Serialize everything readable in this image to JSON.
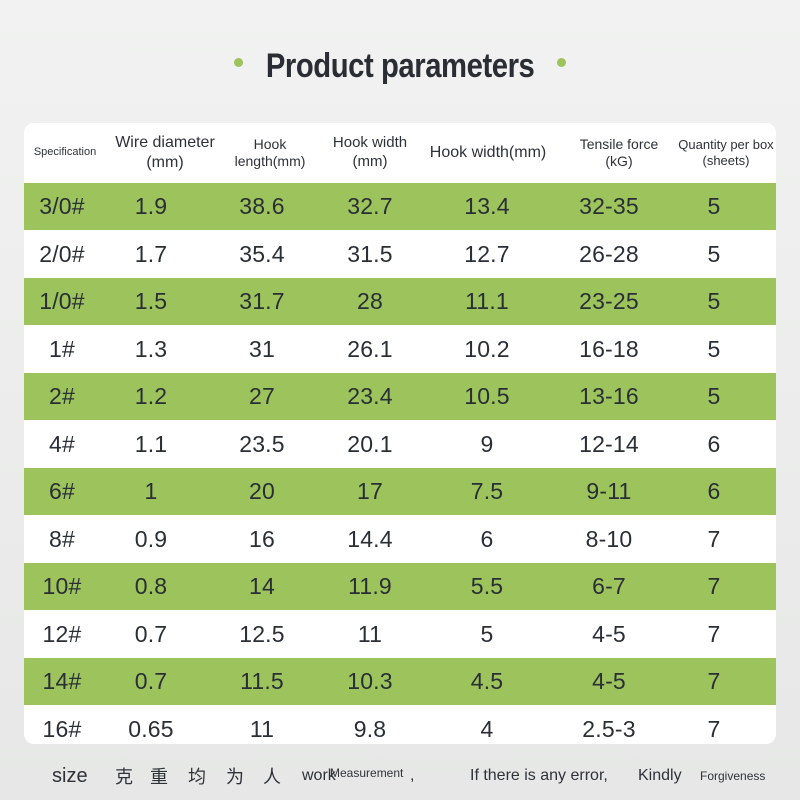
{
  "title": "Product parameters",
  "colors": {
    "accent_green": "#9cc35c",
    "text_dark": "#2a2e35",
    "row_white": "#ffffff"
  },
  "table": {
    "headers": [
      {
        "line1": "Specification",
        "line2": ""
      },
      {
        "line1": "Wire diameter",
        "line2": "(mm)"
      },
      {
        "line1": "Hook",
        "line2": "length(mm)"
      },
      {
        "line1": "Hook width",
        "line2": "(mm)"
      },
      {
        "line1": "Hook width(mm)",
        "line2": ""
      },
      {
        "line1": "Tensile force",
        "line2": "(kG)"
      },
      {
        "line1": "Quantity per box",
        "line2": "(sheets)"
      }
    ],
    "rows": [
      [
        "3/0#",
        "1.9",
        "38.6",
        "32.7",
        "13.4",
        "32-35",
        "5"
      ],
      [
        "2/0#",
        "1.7",
        "35.4",
        "31.5",
        "12.7",
        "26-28",
        "5"
      ],
      [
        "1/0#",
        "1.5",
        "31.7",
        "28",
        "11.1",
        "23-25",
        "5"
      ],
      [
        "1#",
        "1.3",
        "31",
        "26.1",
        "10.2",
        "16-18",
        "5"
      ],
      [
        "2#",
        "1.2",
        "27",
        "23.4",
        "10.5",
        "13-16",
        "5"
      ],
      [
        "4#",
        "1.1",
        "23.5",
        "20.1",
        "9",
        "12-14",
        "6"
      ],
      [
        "6#",
        "1",
        "20",
        "17",
        "7.5",
        "9-11",
        "6"
      ],
      [
        "8#",
        "0.9",
        "16",
        "14.4",
        "6",
        "8-10",
        "7"
      ],
      [
        "10#",
        "0.8",
        "14",
        "11.9",
        "5.5",
        "6-7",
        "7"
      ],
      [
        "12#",
        "0.7",
        "12.5",
        "11",
        "5",
        "4-5",
        "7"
      ],
      [
        "14#",
        "0.7",
        "11.5",
        "10.3",
        "4.5",
        "4-5",
        "7"
      ],
      [
        "16#",
        "0.65",
        "11",
        "9.8",
        "4",
        "2.5-3",
        "7"
      ]
    ]
  },
  "footer": {
    "size": "size",
    "chars": [
      "克",
      "重",
      "均",
      "为",
      "人"
    ],
    "work": "work",
    "measurement": "Measurement",
    "comma": ",",
    "error": "If there is any error,",
    "kindly": "Kindly",
    "forgiveness": "Forgiveness"
  }
}
